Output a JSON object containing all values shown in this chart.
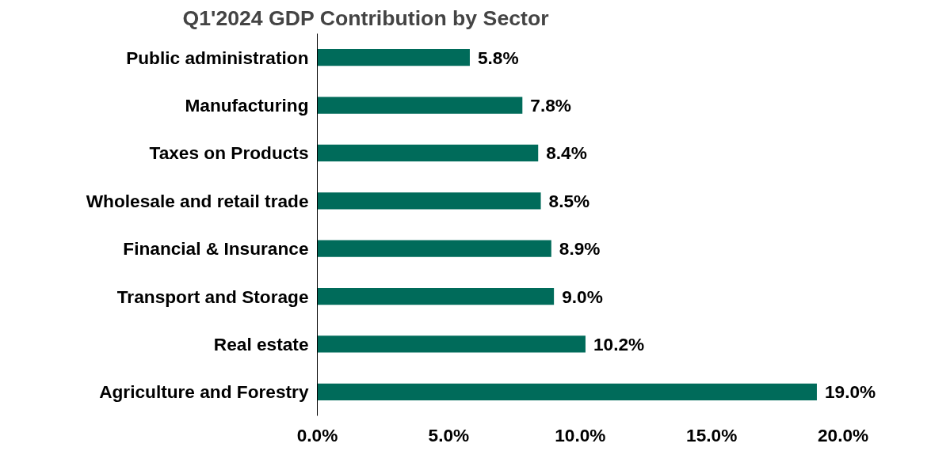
{
  "chart_data": {
    "type": "bar",
    "orientation": "horizontal",
    "title": "Q1'2024 GDP Contribution by Sector",
    "categories": [
      "Public administration",
      "Manufacturing",
      "Taxes on Products",
      "Wholesale and retail trade",
      "Financial & Insurance",
      "Transport and Storage",
      "Real estate",
      "Agriculture and Forestry"
    ],
    "values": [
      5.8,
      7.8,
      8.4,
      8.5,
      8.9,
      9.0,
      10.2,
      19.0
    ],
    "value_labels": [
      "5.8%",
      "7.8%",
      "8.4%",
      "8.5%",
      "8.9%",
      "9.0%",
      "10.2%",
      "19.0%"
    ],
    "color": "#006b5a",
    "xlim": [
      0,
      20
    ],
    "xticks": [
      {
        "value": 0,
        "label": "0.0%"
      },
      {
        "value": 5,
        "label": "5.0%"
      },
      {
        "value": 10,
        "label": "10.0%"
      },
      {
        "value": 15,
        "label": "15.0%"
      },
      {
        "value": 20,
        "label": "20.0%"
      }
    ],
    "grid": false
  }
}
